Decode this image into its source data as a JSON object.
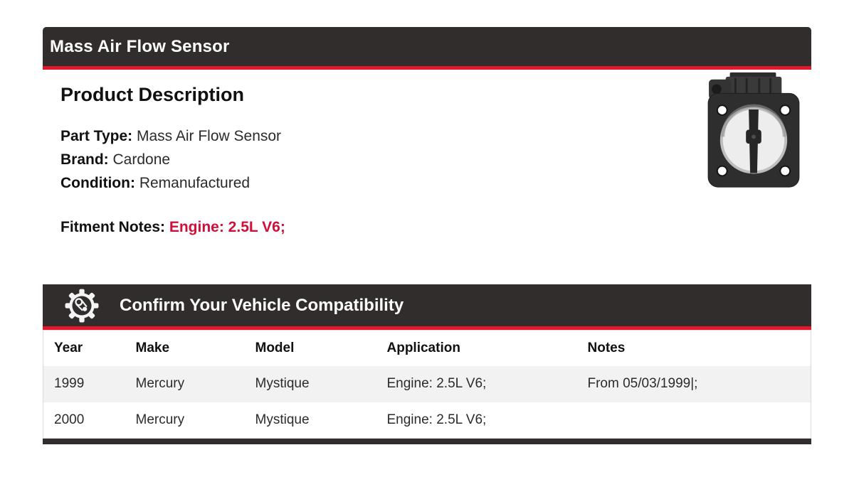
{
  "colors": {
    "header_bg": "#312d2d",
    "accent_red_bar": "#e4172c",
    "fitment_red_text": "#d0103a",
    "row_alt_bg": "#f2f2f2",
    "table_border": "#d9d9d9"
  },
  "title_bar": {
    "title": "Mass Air Flow Sensor"
  },
  "product": {
    "heading": "Product Description",
    "fields": [
      {
        "label": "Part Type:",
        "value": "Mass Air Flow Sensor"
      },
      {
        "label": "Brand:",
        "value": "Cardone"
      },
      {
        "label": "Condition:",
        "value": "Remanufactured"
      }
    ],
    "fitment_label": "Fitment Notes:",
    "fitment_value": "Engine: 2.5L V6;",
    "photo": "mass-air-flow-sensor-photo"
  },
  "compatibility": {
    "heading": "Confirm Your Vehicle Compatibility",
    "icon": "gear-timing-chain-icon",
    "table": {
      "columns": [
        "Year",
        "Make",
        "Model",
        "Application",
        "Notes"
      ],
      "rows": [
        [
          "1999",
          "Mercury",
          "Mystique",
          "Engine: 2.5L V6;",
          "From 05/03/1999|;"
        ],
        [
          "2000",
          "Mercury",
          "Mystique",
          "Engine: 2.5L V6;",
          ""
        ]
      ]
    }
  }
}
